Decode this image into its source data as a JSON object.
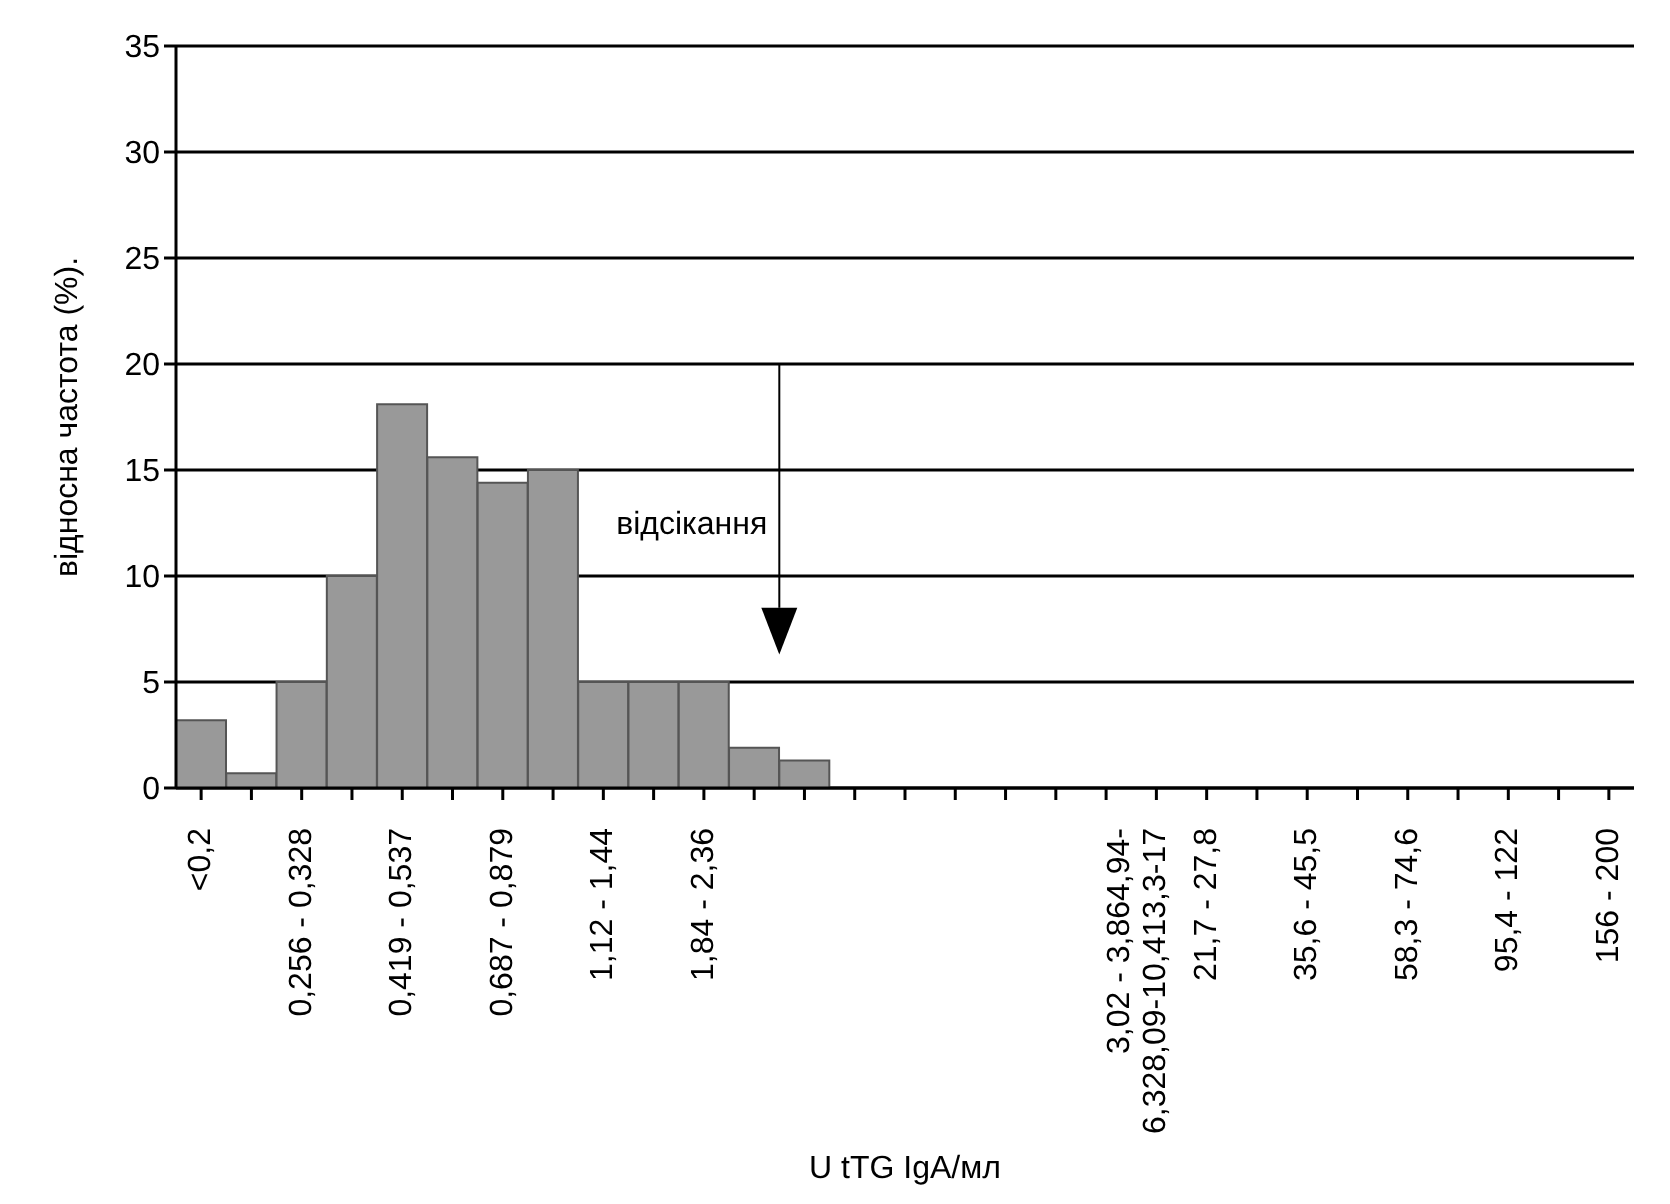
{
  "chart_data": {
    "type": "bar",
    "xlabel": "U tTG IgA/мл",
    "ylabel": "відносна частота (%).",
    "categories": [
      "<0,2",
      null,
      "0,256 - 0,328",
      null,
      "0,419 - 0,537",
      null,
      "0,687 - 0,879",
      null,
      "1,12 - 1,44",
      null,
      "1,84 - 2,36",
      null,
      null,
      null,
      null,
      null,
      null,
      null,
      null,
      "3,02 - 3,864,94-6,328,09-10,413,3-17",
      "21,7 - 27,8",
      null,
      "35,6 - 45,5",
      null,
      "58,3 - 74,6",
      null,
      "95,4 - 122",
      null,
      "156 - 200"
    ],
    "values": [
      3.2,
      0.7,
      5,
      10,
      18.1,
      15.6,
      14.4,
      15,
      5,
      5,
      5,
      1.9,
      1.3,
      0,
      0,
      0,
      0,
      0,
      0,
      0,
      0,
      0,
      0,
      0,
      0,
      0,
      0,
      0,
      0
    ],
    "color": "#999999",
    "ylim": [
      0,
      35
    ],
    "yticks": [
      0,
      5,
      10,
      15,
      20,
      25,
      30,
      35
    ],
    "grid": "y",
    "annotations": [
      "відсікання"
    ]
  }
}
